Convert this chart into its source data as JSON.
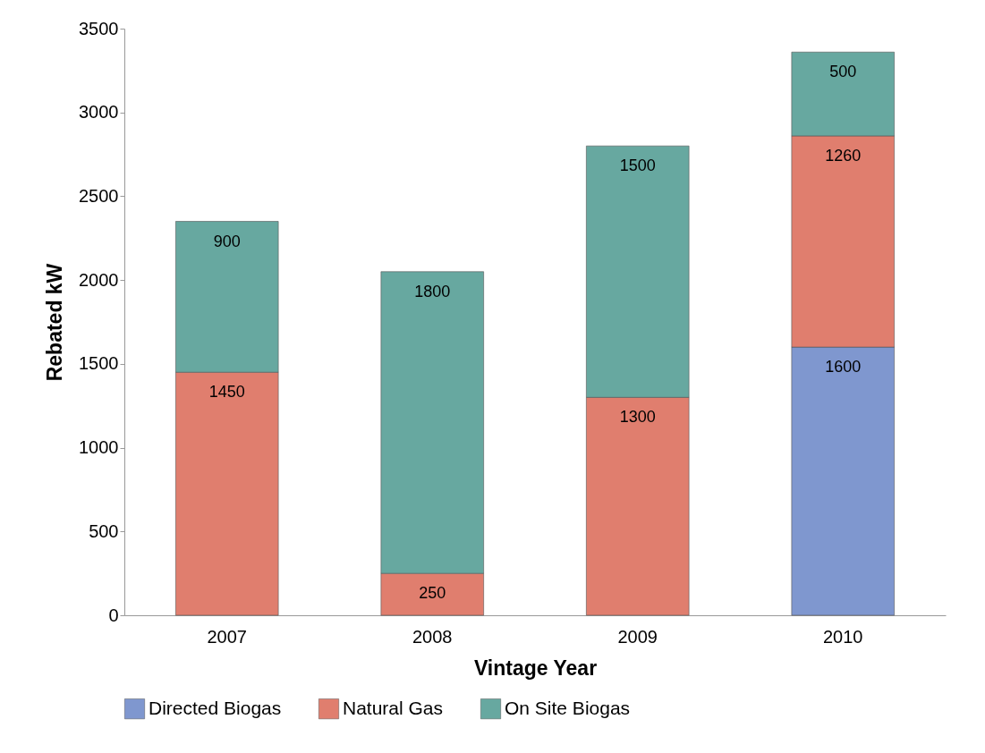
{
  "chart_data": {
    "type": "bar",
    "stacked": true,
    "xlabel": "Vintage Year",
    "ylabel": "Rebated kW",
    "categories": [
      "2007",
      "2008",
      "2009",
      "2010"
    ],
    "series": [
      {
        "name": "Directed Biogas",
        "color": "#7f97cf",
        "values": [
          null,
          null,
          null,
          1600
        ]
      },
      {
        "name": "Natural Gas",
        "color": "#e07e6e",
        "values": [
          1450,
          250,
          1300,
          1260
        ]
      },
      {
        "name": "On Site Biogas",
        "color": "#67a8a0",
        "values": [
          900,
          1800,
          1500,
          500
        ]
      }
    ],
    "ylim": [
      0,
      3500
    ],
    "yticks": [
      0,
      500,
      1000,
      1500,
      2000,
      2500,
      3000,
      3500
    ],
    "data_labels": true,
    "grid": false,
    "legend": "bottom"
  }
}
